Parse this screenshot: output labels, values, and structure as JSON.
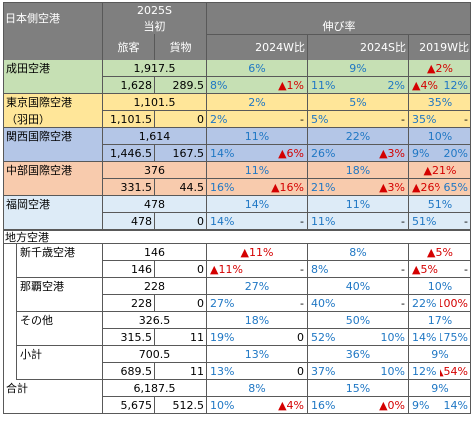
{
  "colors": {
    "header": "#7f7f7f",
    "grid": "#595959",
    "green": "#c6e0b4",
    "yellow": "#ffe699",
    "blue": "#b4c6e7",
    "orange": "#f8cbad",
    "lightblue": "#ddebf7",
    "white": "#ffffff",
    "value_positive": "#1f77c4",
    "value_negative": "#d40000"
  },
  "header": {
    "corner_label": "日本側空港",
    "year_label": "2025S",
    "initial_label": "当初",
    "growth_label": "伸び率",
    "passenger_label": "旅客",
    "cargo_label": "貨物",
    "comp_2024w": "2024W比",
    "comp_2024s": "2024S比",
    "comp_2019w": "2019W比"
  },
  "regional_label": "地方空港",
  "rows": [
    {
      "name": "成田空港",
      "sub": "",
      "color": "green",
      "total": "1,917.5",
      "pax": "1,628",
      "cargo": "289.5",
      "g24w": "6%",
      "g24w_pax": "8%",
      "g24w_cargo": "▲1%",
      "g24s": "9%",
      "g24s_pax": "11%",
      "g24s_cargo": "2%",
      "g19w": "▲2%",
      "g19w_pax": "▲4%",
      "g19w_cargo": "12%"
    },
    {
      "name": "東京国際空港",
      "sub": "（羽田）",
      "color": "yellow",
      "total": "1,101.5",
      "pax": "1,101.5",
      "cargo": "0",
      "g24w": "2%",
      "g24w_pax": "2%",
      "g24w_cargo": "-",
      "g24s": "5%",
      "g24s_pax": "5%",
      "g24s_cargo": "-",
      "g19w": "35%",
      "g19w_pax": "35%",
      "g19w_cargo": "-"
    },
    {
      "name": "関西国際空港",
      "sub": "",
      "color": "blue",
      "total": "1,614",
      "pax": "1,446.5",
      "cargo": "167.5",
      "g24w": "11%",
      "g24w_pax": "14%",
      "g24w_cargo": "▲6%",
      "g24s": "22%",
      "g24s_pax": "26%",
      "g24s_cargo": "▲3%",
      "g19w": "10%",
      "g19w_pax": "9%",
      "g19w_cargo": "20%"
    },
    {
      "name": "中部国際空港",
      "sub": "",
      "color": "orange",
      "total": "376",
      "pax": "331.5",
      "cargo": "44.5",
      "g24w": "11%",
      "g24w_pax": "16%",
      "g24w_cargo": "▲16%",
      "g24s": "18%",
      "g24s_pax": "21%",
      "g24s_cargo": "▲3%",
      "g19w": "▲21%",
      "g19w_pax": "▲26%",
      "g19w_cargo": "65%"
    },
    {
      "name": "福岡空港",
      "sub": "",
      "color": "lightblue",
      "total": "478",
      "pax": "478",
      "cargo": "0",
      "g24w": "14%",
      "g24w_pax": "14%",
      "g24w_cargo": "-",
      "g24s": "11%",
      "g24s_pax": "11%",
      "g24s_cargo": "-",
      "g19w": "51%",
      "g19w_pax": "51%",
      "g19w_cargo": "-"
    },
    {
      "name": "新千歳空港",
      "sub": "",
      "color": "white",
      "indent": true,
      "total": "146",
      "pax": "146",
      "cargo": "0",
      "g24w": "▲11%",
      "g24w_pax": "▲11%",
      "g24w_cargo": "-",
      "g24s": "8%",
      "g24s_pax": "8%",
      "g24s_cargo": "-",
      "g19w": "▲5%",
      "g19w_pax": "▲5%",
      "g19w_cargo": "-"
    },
    {
      "name": "那覇空港",
      "sub": "",
      "color": "white",
      "indent": true,
      "total": "228",
      "pax": "228",
      "cargo": "0",
      "g24w": "27%",
      "g24w_pax": "27%",
      "g24w_cargo": "-",
      "g24s": "40%",
      "g24s_pax": "40%",
      "g24s_cargo": "-",
      "g19w": "10%",
      "g19w_pax": "22%",
      "g19w_cargo": "▲100%"
    },
    {
      "name": "その他",
      "sub": "",
      "color": "white",
      "indent": true,
      "total": "326.5",
      "pax": "315.5",
      "cargo": "11",
      "g24w": "18%",
      "g24w_pax": "19%",
      "g24w_cargo": "0",
      "g24s": "50%",
      "g24s_pax": "52%",
      "g24s_cargo": "10%",
      "g19w": "17%",
      "g19w_pax": "14%",
      "g19w_cargo": "175%"
    },
    {
      "name": "小計",
      "sub": "",
      "color": "white",
      "indent": true,
      "total": "700.5",
      "pax": "689.5",
      "cargo": "11",
      "g24w": "13%",
      "g24w_pax": "13%",
      "g24w_cargo": "0",
      "g24s": "36%",
      "g24s_pax": "37%",
      "g24s_cargo": "10%",
      "g19w": "9%",
      "g19w_pax": "12%",
      "g19w_cargo": "▲54%"
    },
    {
      "name": "合計",
      "sub": "",
      "color": "white",
      "total": "6,187.5",
      "pax": "5,675",
      "cargo": "512.5",
      "g24w": "8%",
      "g24w_pax": "10%",
      "g24w_cargo": "▲4%",
      "g24s": "15%",
      "g24s_pax": "16%",
      "g24s_cargo": "▲0%",
      "g19w": "9%",
      "g19w_pax": "9%",
      "g19w_cargo": "14%"
    }
  ]
}
